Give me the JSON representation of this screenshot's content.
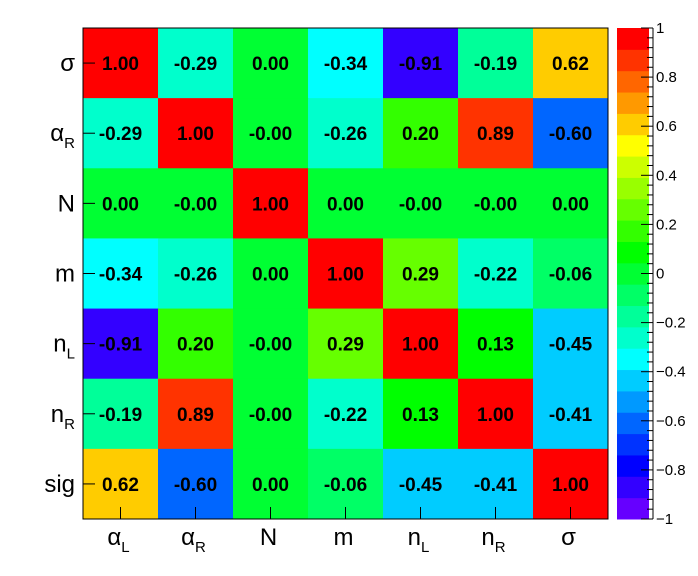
{
  "chart_data": {
    "type": "heatmap",
    "title": "",
    "x_labels": [
      {
        "base": "α",
        "sub": "L"
      },
      {
        "base": "α",
        "sub": "R"
      },
      {
        "base": "N",
        "sub": ""
      },
      {
        "base": "m",
        "sub": ""
      },
      {
        "base": "n",
        "sub": "L"
      },
      {
        "base": "n",
        "sub": "R"
      },
      {
        "base": "σ",
        "sub": ""
      }
    ],
    "y_labels": [
      {
        "base": "σ",
        "sub": ""
      },
      {
        "base": "α",
        "sub": "R"
      },
      {
        "base": "N",
        "sub": ""
      },
      {
        "base": "m",
        "sub": ""
      },
      {
        "base": "n",
        "sub": "L"
      },
      {
        "base": "n",
        "sub": "R"
      },
      {
        "base": "sig",
        "sub": ""
      }
    ],
    "values": [
      [
        1.0,
        -0.29,
        0.0,
        -0.34,
        -0.91,
        -0.19,
        0.62
      ],
      [
        -0.29,
        1.0,
        -0.0,
        -0.26,
        0.2,
        0.89,
        -0.6
      ],
      [
        0.0,
        -0.0,
        1.0,
        0.0,
        -0.0,
        -0.0,
        0.0
      ],
      [
        -0.34,
        -0.26,
        0.0,
        1.0,
        0.29,
        -0.22,
        -0.06
      ],
      [
        -0.91,
        0.2,
        -0.0,
        0.29,
        1.0,
        0.13,
        -0.45
      ],
      [
        -0.19,
        0.89,
        -0.0,
        -0.22,
        0.13,
        1.0,
        -0.41
      ],
      [
        0.62,
        -0.6,
        0.0,
        -0.06,
        -0.45,
        -0.41,
        1.0
      ]
    ],
    "cell_labels": [
      [
        "1.00",
        "-0.29",
        "0.00",
        "-0.34",
        "-0.91",
        "-0.19",
        "0.62"
      ],
      [
        "-0.29",
        "1.00",
        "-0.00",
        "-0.26",
        "0.20",
        "0.89",
        "-0.60"
      ],
      [
        "0.00",
        "-0.00",
        "1.00",
        "0.00",
        "-0.00",
        "-0.00",
        "0.00"
      ],
      [
        "-0.34",
        "-0.26",
        "0.00",
        "1.00",
        "0.29",
        "-0.22",
        "-0.06"
      ],
      [
        "-0.91",
        "0.20",
        "-0.00",
        "0.29",
        "1.00",
        "0.13",
        "-0.45"
      ],
      [
        "-0.19",
        "0.89",
        "-0.00",
        "-0.22",
        "0.13",
        "1.00",
        "-0.41"
      ],
      [
        "0.62",
        "-0.60",
        "0.00",
        "-0.06",
        "-0.45",
        "-0.41",
        "1.00"
      ]
    ],
    "zlim": [
      -1,
      1
    ],
    "z_tick_labels": [
      "1",
      "0.8",
      "0.6",
      "0.4",
      "0.2",
      "0",
      "−0.2",
      "−0.4",
      "−0.6",
      "−0.8",
      "−1"
    ],
    "palette": [
      "#6600ff",
      "#3300ff",
      "#0000ff",
      "#0033ff",
      "#0066ff",
      "#0099ff",
      "#00ccff",
      "#00ffff",
      "#00ffcc",
      "#00ff99",
      "#00ff66",
      "#00ff33",
      "#00ff00",
      "#33ff00",
      "#66ff00",
      "#99ff00",
      "#ccff00",
      "#ffff00",
      "#ffcc00",
      "#ff9900",
      "#ff6600",
      "#ff3300",
      "#ff0000"
    ],
    "grid": false
  }
}
